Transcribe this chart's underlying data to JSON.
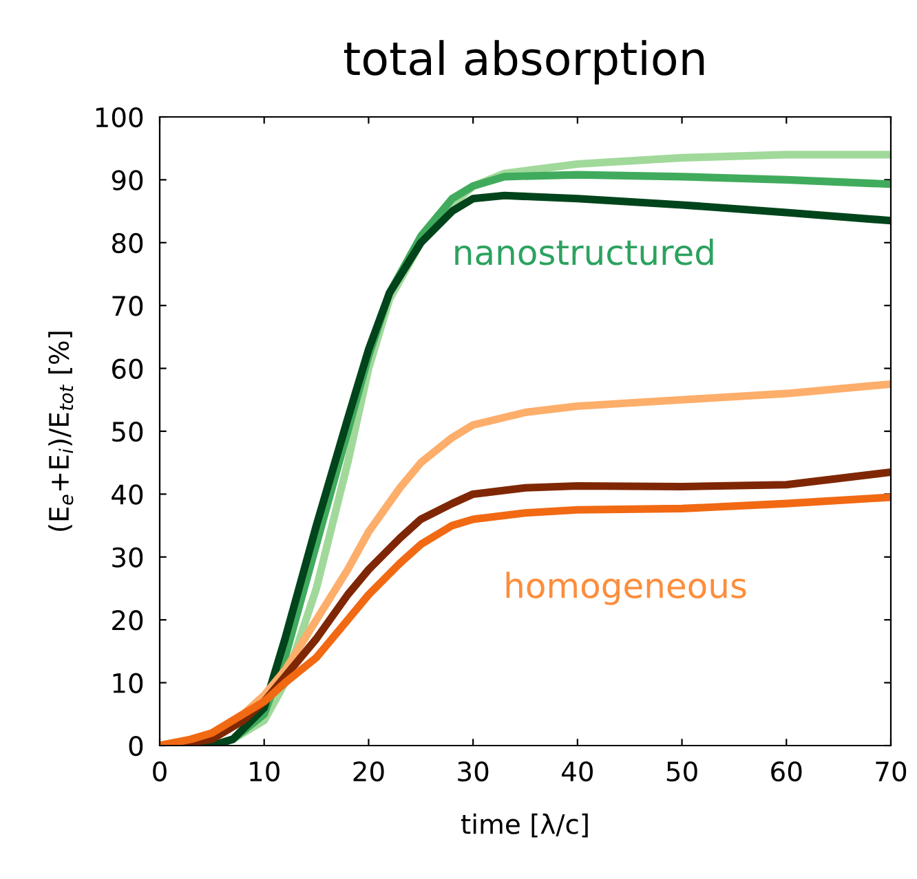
{
  "chart_data": {
    "type": "line",
    "title": "total absorption",
    "xlabel": "time [λ/c]",
    "ylabel": "(E$_{e}$+E$_{i}$)/E$_{tot}$ [%]",
    "xlim": [
      0,
      70
    ],
    "xticks": [
      0,
      10,
      20,
      30,
      40,
      50,
      60,
      70
    ],
    "ylim": [
      0,
      100
    ],
    "yticks": [
      0,
      10,
      20,
      30,
      40,
      50,
      60,
      70,
      80,
      90,
      100
    ],
    "x": [
      0,
      5,
      7,
      10,
      12,
      15,
      18,
      20,
      22,
      25,
      28,
      30,
      33,
      40,
      50,
      60,
      70
    ],
    "series": [
      {
        "color": "#a1d99b",
        "values": [
          0,
          0,
          1,
          4,
          10,
          25,
          45,
          60,
          71,
          80,
          86,
          89,
          91,
          92.5,
          93.5,
          94,
          94
        ]
      },
      {
        "color": "#41ab5d",
        "values": [
          0,
          0,
          1,
          5,
          14,
          32,
          50,
          62,
          72,
          81,
          87,
          89,
          90.5,
          90.8,
          90.5,
          90,
          89.3
        ]
      },
      {
        "color": "#00441b",
        "values": [
          0,
          0,
          1,
          6,
          17,
          35,
          52,
          63,
          72,
          80,
          85,
          87,
          87.5,
          87,
          86,
          84.8,
          83.5
        ]
      },
      {
        "color": "#fdae6b",
        "x": [
          0,
          3,
          5,
          8,
          10,
          12,
          15,
          18,
          20,
          23,
          25,
          28,
          30,
          35,
          40,
          50,
          60,
          70
        ],
        "values": [
          0,
          1,
          2,
          5,
          8,
          12,
          20,
          28,
          34,
          41,
          45,
          49,
          51,
          53,
          54,
          55,
          56,
          57.5
        ]
      },
      {
        "color": "#7f2704",
        "x": [
          0,
          3,
          5,
          8,
          10,
          12,
          15,
          18,
          20,
          23,
          25,
          28,
          30,
          35,
          40,
          50,
          60,
          70
        ],
        "values": [
          0,
          0.5,
          1,
          4,
          7,
          11,
          17,
          24,
          28,
          33,
          36,
          38.5,
          40,
          41,
          41.3,
          41.2,
          41.5,
          43.5
        ]
      },
      {
        "color": "#f16913",
        "x": [
          0,
          3,
          5,
          8,
          10,
          12,
          15,
          18,
          20,
          23,
          25,
          28,
          30,
          35,
          40,
          50,
          60,
          70
        ],
        "values": [
          0,
          1,
          2,
          5,
          7,
          10,
          14,
          20,
          24,
          29,
          32,
          35,
          36,
          37,
          37.5,
          37.7,
          38.5,
          39.5
        ]
      }
    ],
    "annotations": [
      "nanostructured",
      "homogeneous"
    ]
  }
}
